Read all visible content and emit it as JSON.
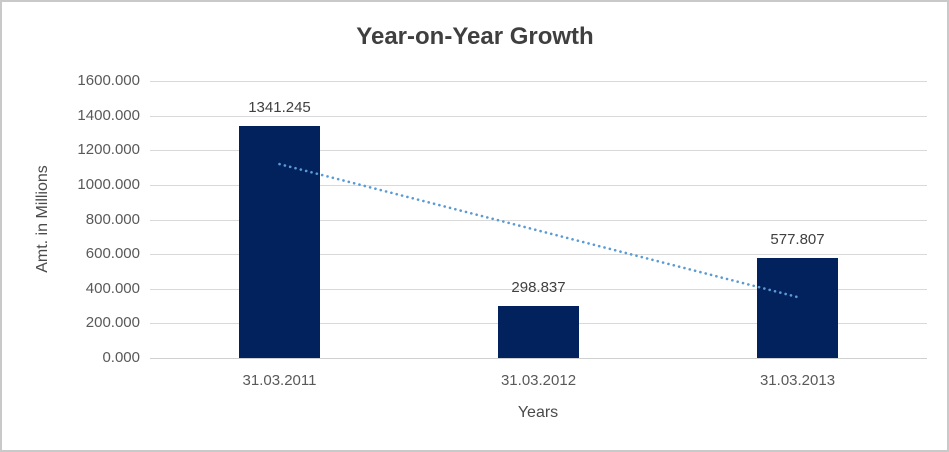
{
  "chart_data": {
    "type": "bar",
    "title": "Year-on-Year Growth",
    "categories": [
      "31.03.2011",
      "31.03.2012",
      "31.03.2013"
    ],
    "values": [
      1341.245,
      298.837,
      577.807
    ],
    "data_labels": [
      "1341.245",
      "298.837",
      "577.807"
    ],
    "xlabel": "Years",
    "ylabel": "Amt. in Millions",
    "ylim": [
      0,
      1600
    ],
    "y_tick_step": 200,
    "y_tick_labels": [
      "0.000",
      "200.000",
      "400.000",
      "600.000",
      "800.000",
      "1000.000",
      "1200.000",
      "1400.000",
      "1600.000"
    ],
    "grid": true,
    "legend": false,
    "trendline": {
      "type": "linear",
      "style": "dotted",
      "start": {
        "x_index": 0,
        "value": 1120
      },
      "end": {
        "x_index": 2,
        "value": 352
      }
    },
    "colors": {
      "bar": "#02225e",
      "trendline": "#5b9bd5",
      "gridline": "#d9d9d9",
      "axis_text": "#595959",
      "label_text": "#404040",
      "title_text": "#3f3f3f",
      "border": "#c9c9c9",
      "background": "#ffffff"
    }
  }
}
